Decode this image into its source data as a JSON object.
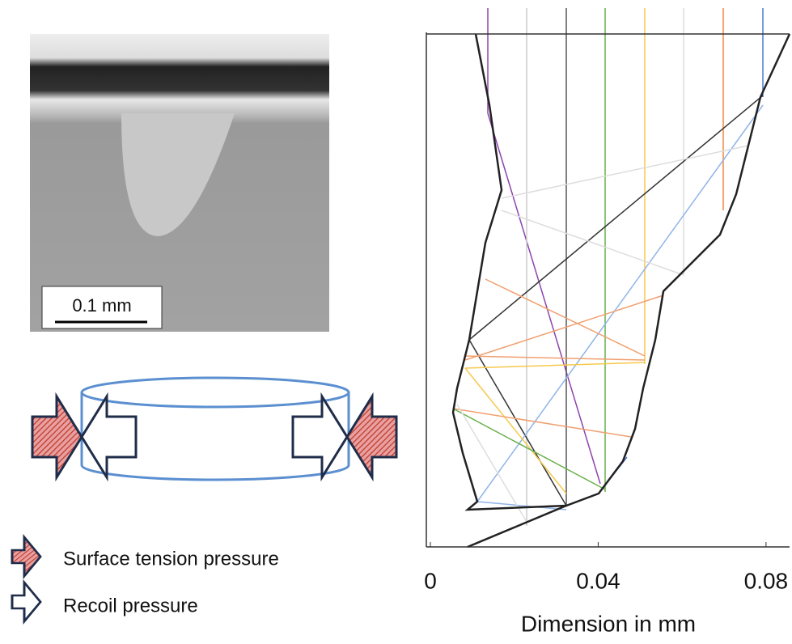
{
  "micrograph": {
    "scale_label": "0.1 mm"
  },
  "legend": [
    "Surface tension pressure",
    "Recoil pressure"
  ],
  "plot": {
    "xlabel": "Dimension in mm",
    "xlim": [
      0,
      0.086
    ],
    "xticks": [
      0,
      0.04,
      0.08
    ]
  }
}
